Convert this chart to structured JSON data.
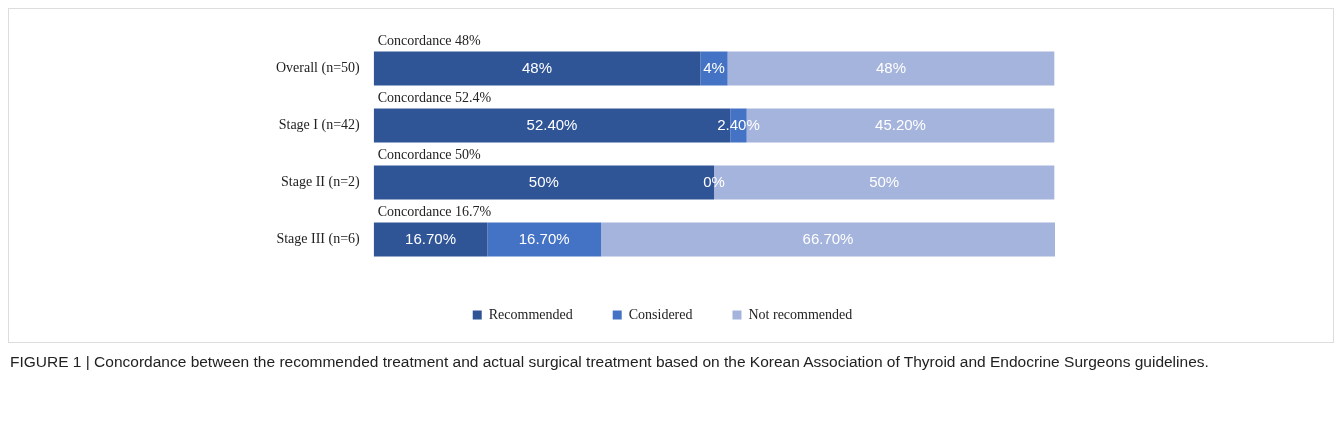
{
  "chart_data": {
    "type": "bar",
    "orientation": "horizontal",
    "stacked": true,
    "categories": [
      "Overall (n=50)",
      "Stage I (n=42)",
      "Stage II (n=2)",
      "Stage III (n=6)"
    ],
    "series": [
      {
        "name": "Recommended",
        "color": "#2f5597",
        "values": [
          48,
          52.4,
          50,
          16.7
        ],
        "value_labels": [
          "48%",
          "52.40%",
          "50%",
          "16.70%"
        ]
      },
      {
        "name": "Considered",
        "color": "#4472c4",
        "values": [
          4,
          2.4,
          0,
          16.7
        ],
        "value_labels": [
          "4%",
          "2.40%",
          null,
          "16.70%"
        ]
      },
      {
        "name": "Not recommended",
        "color": "#a5b4dc",
        "values": [
          48,
          45.2,
          50,
          66.7
        ],
        "value_labels": [
          "48%",
          "45.20%",
          "50%",
          "66.70%"
        ]
      }
    ],
    "xlim": [
      0,
      100.1
    ],
    "tick_labels": "y",
    "legend": "bottom",
    "annotations": [
      "Concordance 48%",
      "Concordance 52.4%",
      "Concordance 50%",
      "Concordance 16.7%",
      {
        "text": "0%",
        "x": 50,
        "y": "Stage II (n=2)"
      },
      "FIGURE 1 | Concordance between the recommended treatment and actual surgical treatment based on the Korean Association of Thyroid and Endocrine Surgeons guidelines."
    ]
  }
}
